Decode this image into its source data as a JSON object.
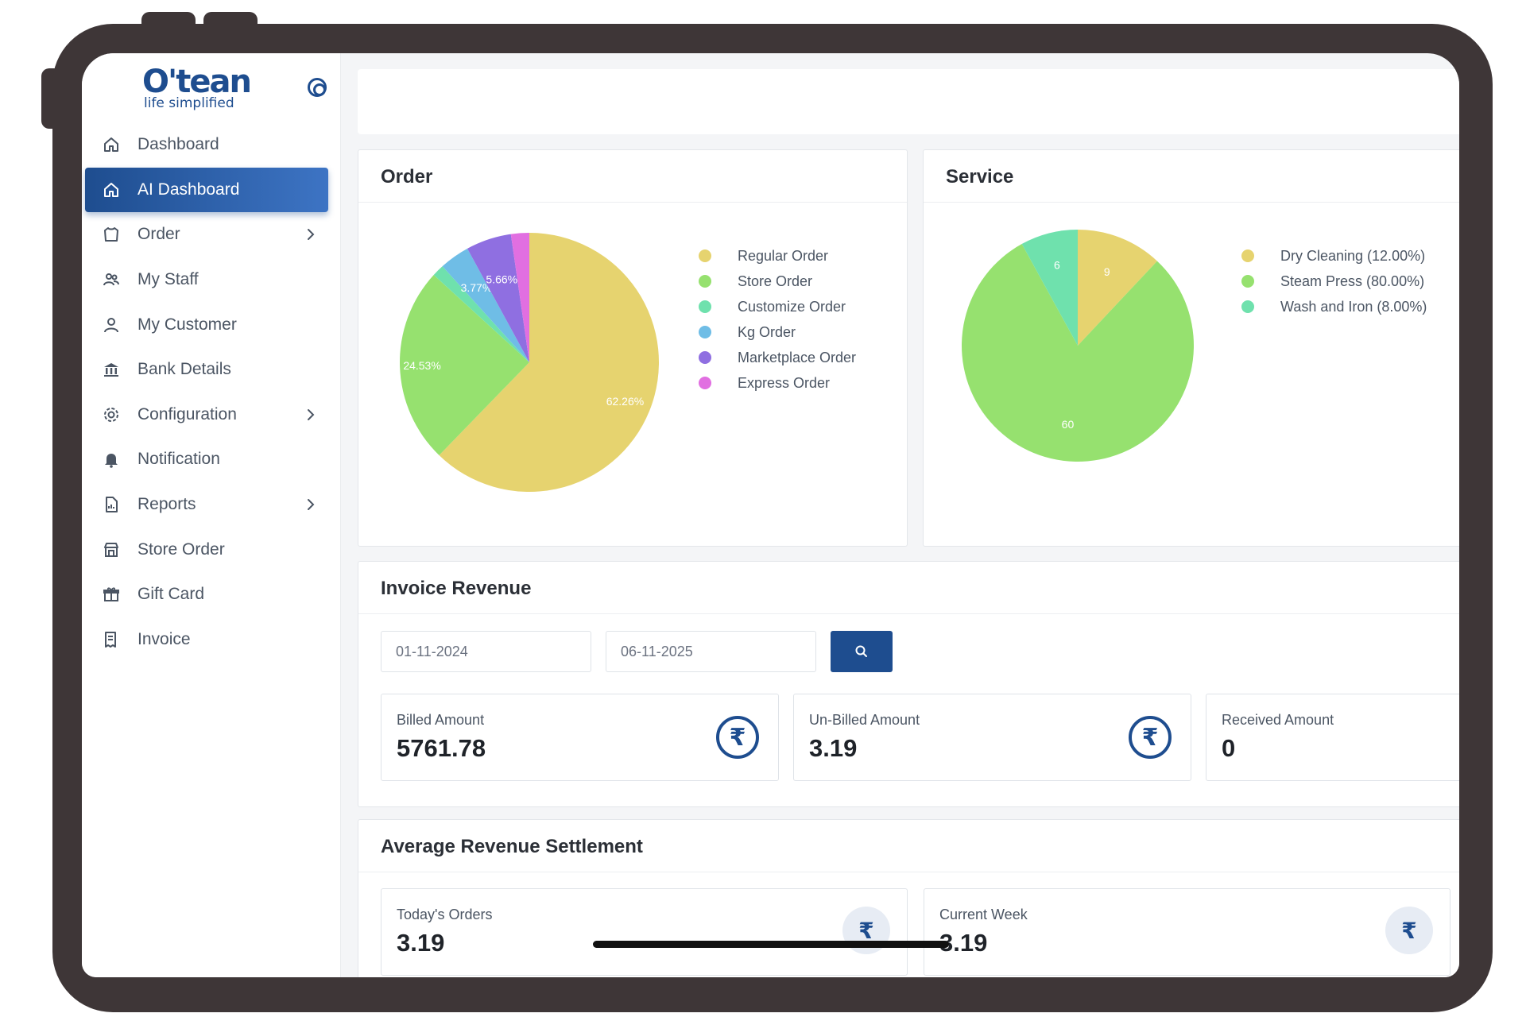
{
  "app": {
    "logo_text": "O'tean",
    "logo_tagline": "life simplified"
  },
  "sidebar": {
    "items": [
      {
        "label": "Dashboard",
        "icon": "home-icon",
        "active": false,
        "has_submenu": false
      },
      {
        "label": "AI Dashboard",
        "icon": "home-icon",
        "active": true,
        "has_submenu": false
      },
      {
        "label": "Order",
        "icon": "shirt-icon",
        "active": false,
        "has_submenu": true
      },
      {
        "label": "My Staff",
        "icon": "staff-icon",
        "active": false,
        "has_submenu": false
      },
      {
        "label": "My Customer",
        "icon": "user-icon",
        "active": false,
        "has_submenu": false
      },
      {
        "label": "Bank Details",
        "icon": "bank-icon",
        "active": false,
        "has_submenu": false
      },
      {
        "label": "Configuration",
        "icon": "settings-icon",
        "active": false,
        "has_submenu": true
      },
      {
        "label": "Notification",
        "icon": "bell-icon",
        "active": false,
        "has_submenu": false
      },
      {
        "label": "Reports",
        "icon": "report-icon",
        "active": false,
        "has_submenu": true
      },
      {
        "label": "Store Order",
        "icon": "store-icon",
        "active": false,
        "has_submenu": false
      },
      {
        "label": "Gift Card",
        "icon": "gift-icon",
        "active": false,
        "has_submenu": false
      },
      {
        "label": "Invoice",
        "icon": "invoice-icon",
        "active": false,
        "has_submenu": false
      }
    ]
  },
  "order_card": {
    "title": "Order"
  },
  "service_card": {
    "title": "Service"
  },
  "invoice_revenue": {
    "title": "Invoice Revenue",
    "from_date": "01-11-2024",
    "to_date": "06-11-2025",
    "stats": [
      {
        "label": "Billed Amount",
        "value": "5761.78",
        "icon": "rupee-icon"
      },
      {
        "label": "Un-Billed Amount",
        "value": "3.19",
        "icon": "rupee-icon"
      },
      {
        "label": "Received Amount",
        "value": "0",
        "icon": "rupee-icon"
      }
    ]
  },
  "avg_revenue": {
    "title": "Average Revenue Settlement",
    "stats": [
      {
        "label": "Today's Orders",
        "value": "3.19",
        "icon": "rupee-icon"
      },
      {
        "label": "Current Week",
        "value": "3.19",
        "icon": "rupee-icon"
      }
    ]
  },
  "colors": {
    "brand": "#1e4d8f",
    "yellow": "#e6d36f",
    "green": "#96e16f",
    "teal": "#6fe1ad",
    "blue": "#6fbde6",
    "purple": "#8f6fe1",
    "pink": "#e16fe1"
  },
  "chart_data": [
    {
      "type": "pie",
      "title": "Order",
      "categories": [
        "Regular Order",
        "Store Order",
        "Customize Order",
        "Kg Order",
        "Marketplace Order",
        "Express Order"
      ],
      "values": [
        62.26,
        24.53,
        1.5,
        3.77,
        5.66,
        2.28
      ],
      "data_labels": [
        "62.26%",
        "24.53%",
        "",
        "3.77%",
        "5.66%",
        ""
      ],
      "colors": [
        "#e6d36f",
        "#96e16f",
        "#6fe1ad",
        "#6fbde6",
        "#8f6fe1",
        "#e16fe1"
      ],
      "legend": "right"
    },
    {
      "type": "pie",
      "title": "Service",
      "categories": [
        "Dry Cleaning (12.00%)",
        "Steam Press (80.00%)",
        "Wash and Iron (8.00%)"
      ],
      "values": [
        9,
        60,
        6
      ],
      "data_labels": [
        "9",
        "60",
        "6"
      ],
      "colors": [
        "#e6d36f",
        "#96e16f",
        "#6fe1ad"
      ],
      "legend": "right"
    }
  ]
}
